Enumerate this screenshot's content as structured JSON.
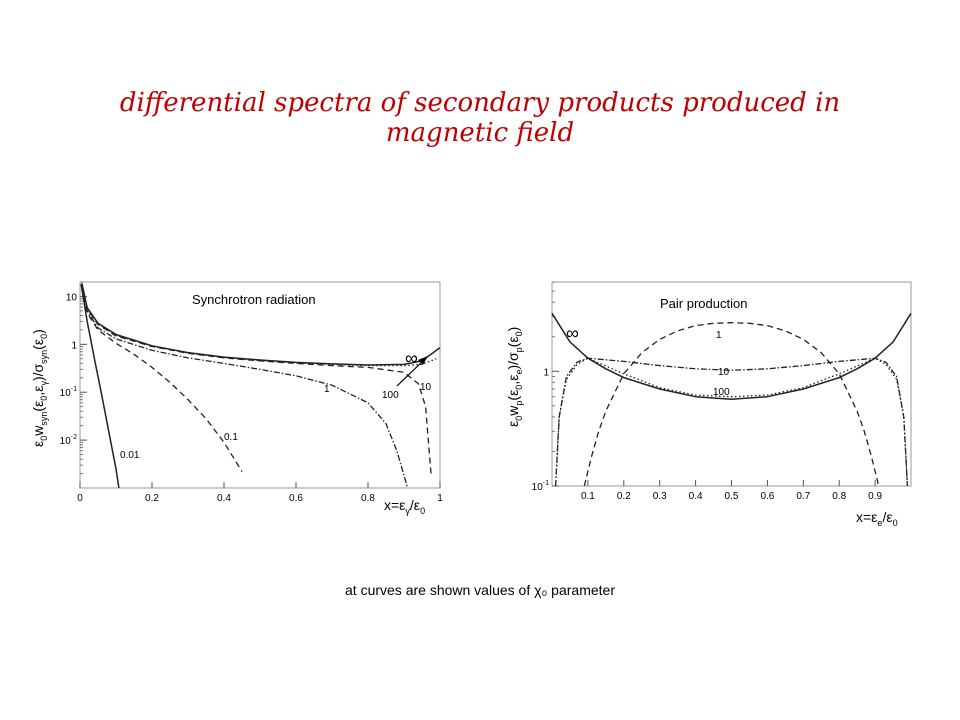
{
  "title": {
    "line1": "differential spectra of secondary products produced in",
    "line2": "magnetic field"
  },
  "caption": {
    "prefix": "at curves are shown values of ",
    "symbol": "χ₀",
    "suffix": " parameter"
  },
  "chart_data": [
    {
      "type": "line",
      "title": "Synchrotron radiation",
      "xlabel": "x=εγ/ε0",
      "ylabel": "ε0 wsyn(ε0,εγ)/σsyn(ε0)",
      "xlim": [
        0,
        1
      ],
      "ylim": [
        0.001,
        20
      ],
      "yscale": "log",
      "xticks": [
        "0",
        "0.2",
        "0.4",
        "0.6",
        "0.8",
        "1"
      ],
      "yticks": [
        "10",
        "1",
        "10-1",
        "10-2"
      ],
      "grid": false,
      "series": [
        {
          "name": "0.01",
          "style": "solid",
          "x": [
            0.003,
            0.02,
            0.04,
            0.06,
            0.08,
            0.1,
            0.108
          ],
          "y": [
            18,
            3,
            0.5,
            0.09,
            0.015,
            0.0025,
            0.001
          ]
        },
        {
          "name": "0.1",
          "style": "dashed",
          "x": [
            0.005,
            0.02,
            0.05,
            0.1,
            0.15,
            0.2,
            0.25,
            0.3,
            0.35,
            0.4,
            0.45
          ],
          "y": [
            16,
            4.5,
            2.0,
            1.05,
            0.62,
            0.33,
            0.16,
            0.07,
            0.028,
            0.009,
            0.0022
          ]
        },
        {
          "name": "1",
          "style": "dash-dot",
          "x": [
            0.005,
            0.02,
            0.05,
            0.1,
            0.2,
            0.3,
            0.4,
            0.5,
            0.6,
            0.7,
            0.8,
            0.85,
            0.88,
            0.91
          ],
          "y": [
            18,
            5,
            2.2,
            1.3,
            0.75,
            0.52,
            0.4,
            0.3,
            0.22,
            0.14,
            0.06,
            0.022,
            0.006,
            0.001
          ]
        },
        {
          "name": "10",
          "style": "dashed",
          "x": [
            0.005,
            0.02,
            0.05,
            0.1,
            0.2,
            0.3,
            0.4,
            0.5,
            0.6,
            0.7,
            0.8,
            0.9,
            0.94,
            0.96,
            0.975
          ],
          "y": [
            18,
            5.5,
            2.6,
            1.5,
            0.9,
            0.65,
            0.52,
            0.45,
            0.4,
            0.36,
            0.33,
            0.26,
            0.15,
            0.05,
            0.002
          ]
        },
        {
          "name": "100",
          "style": "dotted",
          "x": [
            0.005,
            0.02,
            0.05,
            0.1,
            0.2,
            0.3,
            0.4,
            0.5,
            0.6,
            0.7,
            0.8,
            0.9,
            0.95,
            0.99
          ],
          "y": [
            18,
            5.6,
            2.7,
            1.55,
            0.92,
            0.66,
            0.53,
            0.46,
            0.41,
            0.38,
            0.36,
            0.36,
            0.38,
            0.5
          ]
        },
        {
          "name": "∞",
          "style": "solid",
          "x": [
            0.005,
            0.02,
            0.05,
            0.1,
            0.2,
            0.3,
            0.4,
            0.5,
            0.6,
            0.7,
            0.8,
            0.9,
            0.95,
            1.0
          ],
          "y": [
            19,
            5.8,
            2.75,
            1.6,
            0.93,
            0.67,
            0.54,
            0.47,
            0.42,
            0.39,
            0.37,
            0.38,
            0.45,
            0.85
          ]
        }
      ]
    },
    {
      "type": "line",
      "title": "Pair production",
      "xlabel": "x=εe/ε0",
      "ylabel": "ε0 wp(ε0,εe)/σp(ε0)",
      "xlim": [
        0,
        1
      ],
      "ylim": [
        0.1,
        6
      ],
      "yscale": "log",
      "xticks": [
        "0.1",
        "0.2",
        "0.3",
        "0.4",
        "0.5",
        "0.6",
        "0.7",
        "0.8",
        "0.9"
      ],
      "yticks": [
        "1",
        "10-1"
      ],
      "grid": false,
      "series": [
        {
          "name": "1",
          "style": "dashed",
          "x": [
            0.09,
            0.11,
            0.13,
            0.15,
            0.2,
            0.25,
            0.3,
            0.35,
            0.4,
            0.45,
            0.5,
            0.55,
            0.6,
            0.65,
            0.7,
            0.75,
            0.8,
            0.85,
            0.87,
            0.89,
            0.91
          ],
          "y": [
            0.1,
            0.18,
            0.3,
            0.45,
            0.95,
            1.45,
            1.9,
            2.25,
            2.5,
            2.62,
            2.65,
            2.62,
            2.5,
            2.25,
            1.9,
            1.45,
            0.95,
            0.45,
            0.3,
            0.18,
            0.1
          ]
        },
        {
          "name": "10",
          "style": "dash-dot",
          "x": [
            0.01,
            0.02,
            0.04,
            0.07,
            0.1,
            0.2,
            0.3,
            0.4,
            0.5,
            0.6,
            0.7,
            0.8,
            0.9,
            0.93,
            0.96,
            0.98,
            0.99
          ],
          "y": [
            0.1,
            0.4,
            0.9,
            1.2,
            1.3,
            1.22,
            1.12,
            1.05,
            1.02,
            1.05,
            1.12,
            1.22,
            1.3,
            1.2,
            0.9,
            0.4,
            0.1
          ]
        },
        {
          "name": "100",
          "style": "dotted",
          "x": [
            0.01,
            0.02,
            0.04,
            0.07,
            0.1,
            0.2,
            0.3,
            0.4,
            0.5,
            0.6,
            0.7,
            0.8,
            0.9,
            0.93,
            0.96,
            0.98,
            0.99
          ],
          "y": [
            0.1,
            0.4,
            0.85,
            1.15,
            1.3,
            0.95,
            0.72,
            0.62,
            0.6,
            0.62,
            0.72,
            0.95,
            1.3,
            1.15,
            0.85,
            0.4,
            0.1
          ]
        },
        {
          "name": "∞",
          "style": "solid",
          "x": [
            0.0,
            0.05,
            0.1,
            0.15,
            0.2,
            0.3,
            0.4,
            0.5,
            0.6,
            0.7,
            0.8,
            0.85,
            0.9,
            0.95,
            1.0
          ],
          "y": [
            3.2,
            1.8,
            1.3,
            1.05,
            0.88,
            0.7,
            0.6,
            0.57,
            0.6,
            0.7,
            0.88,
            1.05,
            1.3,
            1.8,
            3.2
          ]
        }
      ]
    }
  ]
}
